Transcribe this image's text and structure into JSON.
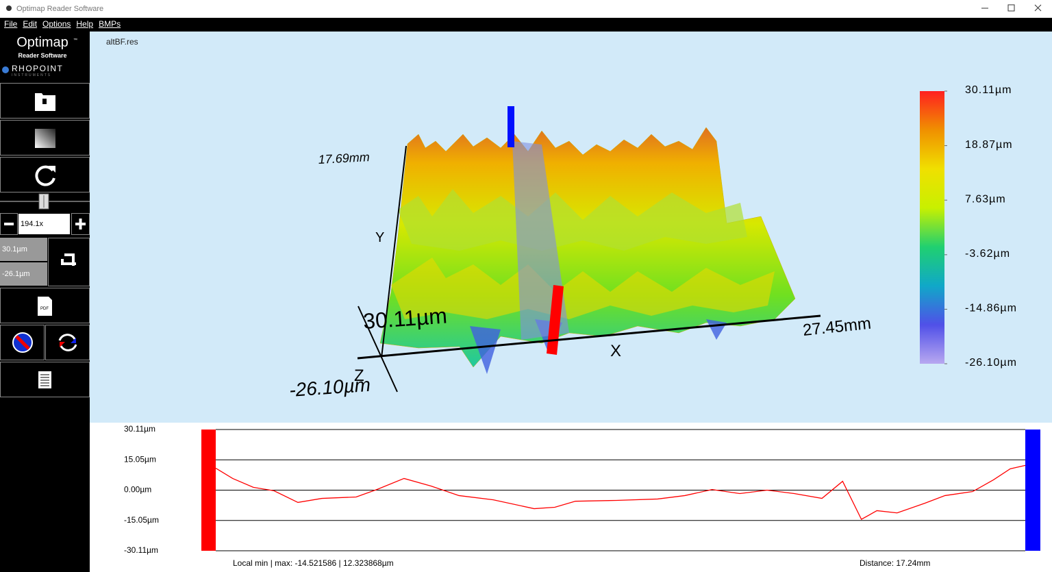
{
  "window": {
    "title": "Optimap Reader Software"
  },
  "menu": [
    "File",
    "Edit",
    "Options",
    "Help",
    "BMPs"
  ],
  "logo": {
    "name": "Optimap",
    "tm": "™",
    "subtitle": "Reader Software",
    "brand": "RHOPOINT",
    "brand_sub": "INSTRUMENTS"
  },
  "sidebar": {
    "zoom": "194.1x",
    "max": "30.1µm",
    "min": "-26.1µm",
    "pdf": "PDF"
  },
  "viewer": {
    "file": "altBF.res",
    "y_extent": "17.69mm",
    "y_axis": "Y",
    "z_max": "30.11µm",
    "x_axis": "X",
    "x_extent": "27.45mm",
    "z_axis": "Z",
    "z_min": "-26.10µm",
    "colorbar": {
      "range": [
        -26.1,
        30.11
      ],
      "colors": [
        "#b8a8f0",
        "#5050e8",
        "#10a8c8",
        "#20d070",
        "#c8f000",
        "#f0e000",
        "#f09000",
        "#ff2020"
      ],
      "ticks": [
        {
          "value": 30.11,
          "label": "30.11µm"
        },
        {
          "value": 18.87,
          "label": "18.87µm"
        },
        {
          "value": 7.63,
          "label": "7.63µm"
        },
        {
          "value": -3.62,
          "label": "-3.62µm"
        },
        {
          "value": -14.86,
          "label": "-14.86µm"
        },
        {
          "value": -26.1,
          "label": "-26.10µm"
        }
      ]
    }
  },
  "chart_data": {
    "type": "line",
    "x": [
      0,
      0.36,
      0.8,
      1.24,
      1.75,
      2.26,
      2.99,
      3.43,
      4.01,
      4.59,
      5.18,
      5.91,
      6.78,
      7.22,
      7.66,
      8.53,
      9.41,
      9.99,
      10.57,
      11.16,
      11.74,
      12.32,
      12.91,
      13.35,
      13.75,
      14.08,
      14.51,
      15.1,
      15.53,
      16.12,
      16.56,
      16.92,
      17.24
    ],
    "xlim": [
      0,
      17.24
    ],
    "series": [
      {
        "color": "#ff0000",
        "values": [
          10.9,
          5.8,
          1.4,
          -0.3,
          -6.1,
          -4.1,
          -3.4,
          0.3,
          5.8,
          2.0,
          -2.7,
          -4.8,
          -9.2,
          -8.5,
          -5.5,
          -5.1,
          -4.4,
          -2.7,
          0.3,
          -1.7,
          0,
          -1.7,
          -4.1,
          4.4,
          -14.5,
          -10.2,
          -11.3,
          -6.5,
          -2.7,
          -0.7,
          5.1,
          10.6,
          12.3
        ]
      }
    ],
    "ylim": [
      -30.11,
      30.11
    ],
    "yticks": [
      {
        "value": 30.11,
        "label": "30.11µm"
      },
      {
        "value": 15.05,
        "label": "15.05µm"
      },
      {
        "value": 0,
        "label": "0.00µm"
      },
      {
        "value": -15.05,
        "label": "-15.05µm"
      },
      {
        "value": -30.11,
        "label": "-30.11µm"
      }
    ],
    "grid": true,
    "start_marker_color": "#ff0000",
    "end_marker_color": "#0000ff"
  },
  "footer": {
    "local": "Local min | max:  -14.521586 | 12.323868µm",
    "distance": "Distance: 17.24mm"
  }
}
